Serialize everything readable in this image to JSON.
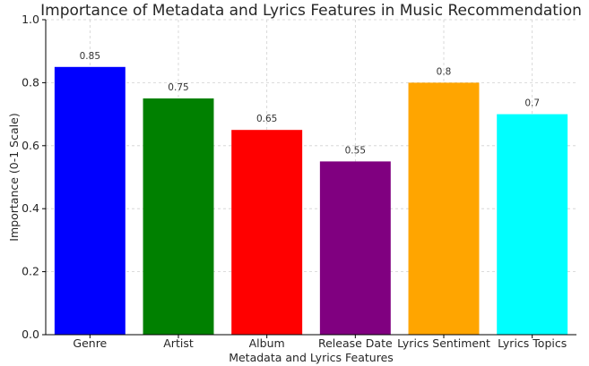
{
  "chart_data": {
    "type": "bar",
    "title": "Importance of Metadata and Lyrics Features in Music Recommendation",
    "xlabel": "Metadata and Lyrics Features",
    "ylabel": "Importance (0-1 Scale)",
    "categories": [
      "Genre",
      "Artist",
      "Album",
      "Release Date",
      "Lyrics Sentiment",
      "Lyrics Topics"
    ],
    "values": [
      0.85,
      0.75,
      0.65,
      0.55,
      0.8,
      0.7
    ],
    "data_labels": [
      "0.85",
      "0.75",
      "0.65",
      "0.55",
      "0.8",
      "0.7"
    ],
    "colors": [
      "#0000ff",
      "#008000",
      "#ff0000",
      "#800080",
      "#ffa500",
      "#00ffff"
    ],
    "ylim": [
      0,
      1.0
    ],
    "yticks": [
      0.0,
      0.2,
      0.4,
      0.6,
      0.8,
      1.0
    ],
    "ytick_labels": [
      "0.0",
      "0.2",
      "0.4",
      "0.6",
      "0.8",
      "1.0"
    ],
    "grid": true
  }
}
